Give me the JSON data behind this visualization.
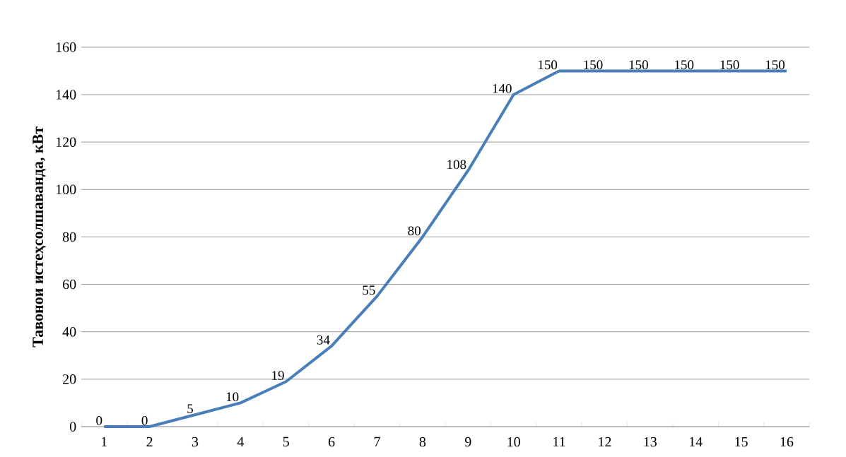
{
  "chart_data": {
    "type": "line",
    "ylabel": "Тавонои истеҳсолшаванда, кВт",
    "categories": [
      "1",
      "2",
      "3",
      "4",
      "5",
      "6",
      "7",
      "8",
      "9",
      "10",
      "11",
      "12",
      "13",
      "14",
      "15",
      "16"
    ],
    "series": [
      {
        "color": "#4a7ebb",
        "values": [
          0,
          0,
          5,
          10,
          19,
          34,
          55,
          80,
          108,
          140,
          150,
          150,
          150,
          150,
          150,
          150
        ]
      }
    ],
    "ylim": [
      0,
      160
    ],
    "yticks": [
      0,
      20,
      40,
      60,
      80,
      100,
      120,
      140,
      160
    ],
    "grid": "y",
    "data_labels": true,
    "marker": "none",
    "line_style": "solid"
  }
}
